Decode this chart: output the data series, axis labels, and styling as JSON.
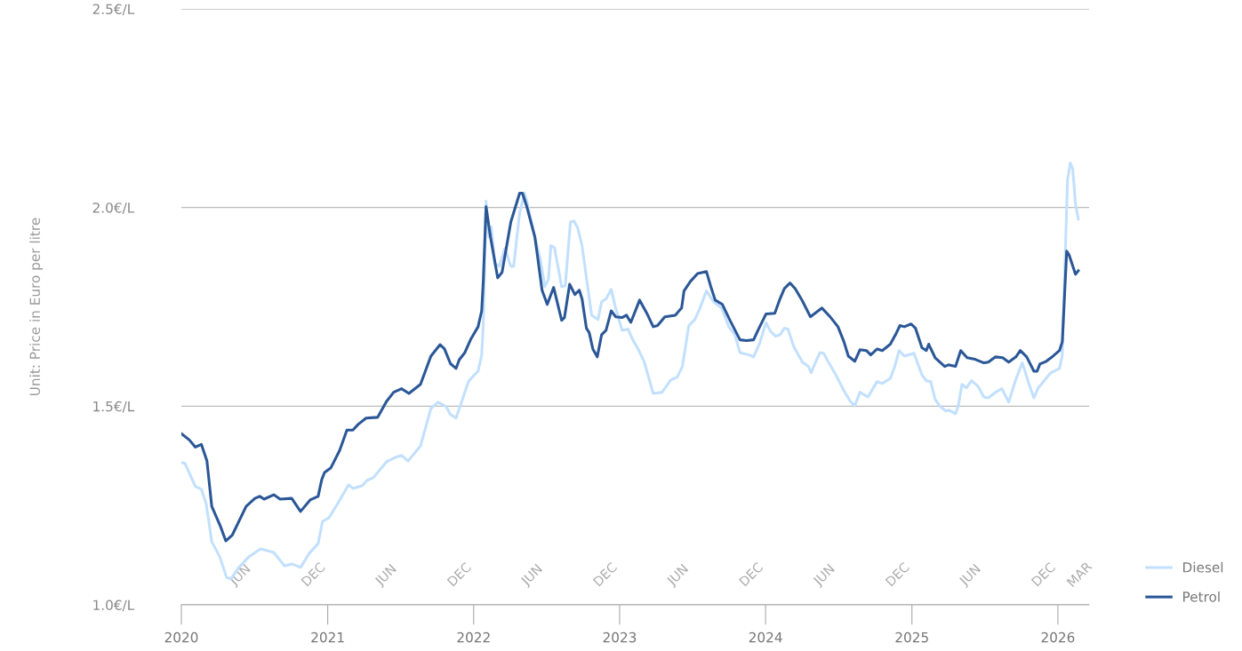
{
  "chart_data": {
    "type": "line",
    "ylabel": "Unit: Price in Euro per litre",
    "xlim": [
      "2020-01-01",
      "2026-03-20"
    ],
    "x2lim": [
      "2020-01-01",
      "2026-03-20"
    ],
    "ylim": [
      1.0,
      2.5
    ],
    "xticks": [
      "2020",
      "2021",
      "2022",
      "2023",
      "2024",
      "2025",
      "2026"
    ],
    "x2ticks": [
      {
        "value": "2020-06-15",
        "label": "JUN"
      },
      {
        "value": "2020-12-15",
        "label": "DEC"
      },
      {
        "value": "2021-06-15",
        "label": "JUN"
      },
      {
        "value": "2021-12-15",
        "label": "DEC"
      },
      {
        "value": "2022-06-15",
        "label": "JUN"
      },
      {
        "value": "2022-12-15",
        "label": "DEC"
      },
      {
        "value": "2023-06-15",
        "label": "JUN"
      },
      {
        "value": "2023-12-15",
        "label": "DEC"
      },
      {
        "value": "2024-06-15",
        "label": "JUN"
      },
      {
        "value": "2024-12-15",
        "label": "DEC"
      },
      {
        "value": "2025-06-15",
        "label": "JUN"
      },
      {
        "value": "2025-12-15",
        "label": "DEC"
      },
      {
        "value": "2026-03-15",
        "label": "MAR"
      }
    ],
    "yticks": [
      {
        "value": 1.0,
        "label": "1.0€/L"
      },
      {
        "value": 1.5,
        "label": "1.5€/L"
      },
      {
        "value": 2.0,
        "label": "2.0€/L"
      },
      {
        "value": 2.5,
        "label": "2.5€/L"
      }
    ],
    "grid": "y",
    "legend": "bottom right",
    "marker": "none",
    "line_style": "solid",
    "series": [
      {
        "name": "Diesel",
        "color": "#c2e0fd",
        "x": [
          "2020-01-01",
          "2020-01-10",
          "2020-02-05",
          "2020-02-20",
          "2020-03-03",
          "2020-03-17",
          "2020-04-06",
          "2020-04-23",
          "2020-05-04",
          "2020-05-22",
          "2020-06-18",
          "2020-07-17",
          "2020-08-19",
          "2020-09-15",
          "2020-10-03",
          "2020-10-25",
          "2020-11-16",
          "2020-12-08",
          "2020-12-19",
          "2021-01-04",
          "2021-01-26",
          "2021-02-22",
          "2021-03-05",
          "2021-03-29",
          "2021-04-09",
          "2021-04-25",
          "2021-05-28",
          "2021-06-19",
          "2021-07-05",
          "2021-07-21",
          "2021-08-21",
          "2021-09-16",
          "2021-10-04",
          "2021-10-24",
          "2021-11-04",
          "2021-11-18",
          "2021-12-19",
          "2022-01-01",
          "2022-01-12",
          "2022-01-21",
          "2022-01-25",
          "2022-02-01",
          "2022-02-08",
          "2022-02-14",
          "2022-02-23",
          "2022-03-06",
          "2022-03-20",
          "2022-04-04",
          "2022-04-11",
          "2022-04-26",
          "2022-05-08",
          "2022-05-14",
          "2022-06-03",
          "2022-06-17",
          "2022-06-28",
          "2022-07-07",
          "2022-07-13",
          "2022-07-22",
          "2022-08-09",
          "2022-08-18",
          "2022-08-31",
          "2022-09-09",
          "2022-09-18",
          "2022-09-29",
          "2022-10-10",
          "2022-10-23",
          "2022-11-08",
          "2022-11-17",
          "2022-11-28",
          "2022-12-11",
          "2022-12-22",
          "2023-01-07",
          "2023-01-22",
          "2023-02-03",
          "2023-02-16",
          "2023-03-03",
          "2023-03-26",
          "2023-04-17",
          "2023-05-09",
          "2023-05-25",
          "2023-06-07",
          "2023-06-23",
          "2023-07-08",
          "2023-07-21",
          "2023-08-06",
          "2023-08-24",
          "2023-09-13",
          "2023-10-01",
          "2023-10-16",
          "2023-10-29",
          "2023-11-21",
          "2023-12-02",
          "2023-12-17",
          "2024-01-02",
          "2024-01-13",
          "2024-01-26",
          "2024-02-06",
          "2024-02-17",
          "2024-02-26",
          "2024-03-11",
          "2024-04-02",
          "2024-04-17",
          "2024-04-24",
          "2024-05-03",
          "2024-05-16",
          "2024-05-25",
          "2024-06-05",
          "2024-06-23",
          "2024-07-15",
          "2024-07-31",
          "2024-08-11",
          "2024-08-24",
          "2024-09-13",
          "2024-10-06",
          "2024-10-19",
          "2024-11-08",
          "2024-11-19",
          "2024-11-30",
          "2024-12-13",
          "2025-01-06",
          "2025-01-26",
          "2025-02-06",
          "2025-02-17",
          "2025-02-28",
          "2025-03-13",
          "2025-03-27",
          "2025-04-04",
          "2025-04-20",
          "2025-04-27",
          "2025-05-06",
          "2025-05-17",
          "2025-05-30",
          "2025-06-15",
          "2025-06-30",
          "2025-07-11",
          "2025-07-29",
          "2025-08-14",
          "2025-08-31",
          "2025-09-18",
          "2025-10-04",
          "2025-10-21",
          "2025-11-02",
          "2025-11-13",
          "2025-12-14",
          "2026-01-05",
          "2026-01-12",
          "2026-01-25",
          "2026-02-01",
          "2026-02-07",
          "2026-02-14",
          "2026-02-21"
        ],
        "values": [
          1.358,
          1.356,
          1.298,
          1.291,
          1.255,
          1.159,
          1.121,
          1.069,
          1.065,
          1.092,
          1.121,
          1.141,
          1.132,
          1.098,
          1.103,
          1.094,
          1.13,
          1.154,
          1.21,
          1.219,
          1.255,
          1.302,
          1.293,
          1.3,
          1.313,
          1.32,
          1.36,
          1.371,
          1.376,
          1.362,
          1.4,
          1.494,
          1.51,
          1.499,
          1.479,
          1.47,
          1.562,
          1.577,
          1.588,
          1.629,
          1.703,
          2.016,
          1.926,
          1.951,
          1.859,
          1.852,
          1.897,
          1.852,
          1.852,
          1.987,
          2.036,
          2.016,
          1.926,
          1.868,
          1.801,
          1.819,
          1.904,
          1.899,
          1.801,
          1.803,
          1.964,
          1.966,
          1.949,
          1.904,
          1.823,
          1.729,
          1.718,
          1.763,
          1.77,
          1.794,
          1.747,
          1.691,
          1.694,
          1.667,
          1.644,
          1.613,
          1.532,
          1.535,
          1.566,
          1.573,
          1.6,
          1.703,
          1.718,
          1.747,
          1.79,
          1.763,
          1.747,
          1.7,
          1.68,
          1.635,
          1.629,
          1.624,
          1.658,
          1.71,
          1.689,
          1.676,
          1.68,
          1.696,
          1.694,
          1.651,
          1.611,
          1.6,
          1.584,
          1.606,
          1.635,
          1.633,
          1.613,
          1.582,
          1.539,
          1.512,
          1.501,
          1.535,
          1.523,
          1.562,
          1.557,
          1.57,
          1.6,
          1.64,
          1.626,
          1.633,
          1.579,
          1.564,
          1.562,
          1.517,
          1.499,
          1.488,
          1.49,
          1.481,
          1.501,
          1.555,
          1.546,
          1.564,
          1.55,
          1.523,
          1.521,
          1.535,
          1.544,
          1.51,
          1.568,
          1.609,
          1.555,
          1.521,
          1.546,
          1.584,
          1.595,
          1.629,
          2.069,
          2.112,
          2.098,
          2.009,
          1.971
        ]
      },
      {
        "name": "Petrol",
        "color": "#2b5797",
        "x": [
          "2020-01-01",
          "2020-01-21",
          "2020-02-05",
          "2020-02-20",
          "2020-03-05",
          "2020-03-17",
          "2020-04-08",
          "2020-04-21",
          "2020-05-07",
          "2020-06-11",
          "2020-07-03",
          "2020-07-15",
          "2020-07-26",
          "2020-08-19",
          "2020-09-04",
          "2020-10-03",
          "2020-10-25",
          "2020-11-18",
          "2020-12-08",
          "2020-12-17",
          "2020-12-24",
          "2021-01-09",
          "2021-01-31",
          "2021-02-18",
          "2021-03-05",
          "2021-03-18",
          "2021-04-07",
          "2021-05-06",
          "2021-05-28",
          "2021-06-15",
          "2021-07-05",
          "2021-07-23",
          "2021-08-21",
          "2021-09-16",
          "2021-10-09",
          "2021-10-20",
          "2021-11-04",
          "2021-11-18",
          "2021-11-26",
          "2021-12-10",
          "2021-12-25",
          "2022-01-12",
          "2022-01-21",
          "2022-01-25",
          "2022-02-01",
          "2022-02-12",
          "2022-03-02",
          "2022-03-13",
          "2022-04-04",
          "2022-04-26",
          "2022-05-03",
          "2022-05-14",
          "2022-06-03",
          "2022-06-10",
          "2022-06-21",
          "2022-07-04",
          "2022-07-20",
          "2022-08-09",
          "2022-08-16",
          "2022-08-29",
          "2022-09-11",
          "2022-09-22",
          "2022-09-29",
          "2022-10-10",
          "2022-10-17",
          "2022-10-26",
          "2022-11-06",
          "2022-11-17",
          "2022-11-28",
          "2022-12-11",
          "2022-12-22",
          "2023-01-07",
          "2023-01-18",
          "2023-01-29",
          "2023-02-20",
          "2023-03-10",
          "2023-03-26",
          "2023-04-06",
          "2023-04-24",
          "2023-05-20",
          "2023-06-05",
          "2023-06-11",
          "2023-06-27",
          "2023-07-15",
          "2023-08-06",
          "2023-08-17",
          "2023-08-28",
          "2023-09-15",
          "2023-10-05",
          "2023-10-29",
          "2023-11-14",
          "2023-12-02",
          "2023-12-13",
          "2024-01-02",
          "2024-01-24",
          "2024-02-06",
          "2024-02-17",
          "2024-03-02",
          "2024-03-15",
          "2024-04-02",
          "2024-04-22",
          "2024-05-21",
          "2024-06-12",
          "2024-06-30",
          "2024-07-15",
          "2024-07-26",
          "2024-08-11",
          "2024-08-24",
          "2024-09-09",
          "2024-09-20",
          "2024-10-06",
          "2024-10-19",
          "2024-11-08",
          "2024-11-21",
          "2024-12-02",
          "2024-12-13",
          "2024-12-30",
          "2025-01-10",
          "2025-01-26",
          "2025-02-06",
          "2025-02-12",
          "2025-02-28",
          "2025-03-24",
          "2025-04-02",
          "2025-04-20",
          "2025-05-03",
          "2025-05-19",
          "2025-06-08",
          "2025-06-30",
          "2025-07-11",
          "2025-07-29",
          "2025-08-16",
          "2025-08-31",
          "2025-09-18",
          "2025-09-29",
          "2025-10-15",
          "2025-11-02",
          "2025-11-10",
          "2025-11-17",
          "2025-12-03",
          "2025-12-20",
          "2026-01-05",
          "2026-01-12",
          "2026-01-23",
          "2026-01-29",
          "2026-02-14",
          "2026-02-21"
        ],
        "values": [
          1.431,
          1.415,
          1.397,
          1.404,
          1.362,
          1.248,
          1.197,
          1.161,
          1.175,
          1.248,
          1.268,
          1.273,
          1.266,
          1.277,
          1.266,
          1.268,
          1.235,
          1.264,
          1.273,
          1.315,
          1.333,
          1.345,
          1.389,
          1.44,
          1.44,
          1.454,
          1.47,
          1.472,
          1.512,
          1.535,
          1.544,
          1.532,
          1.555,
          1.626,
          1.655,
          1.644,
          1.607,
          1.595,
          1.617,
          1.635,
          1.669,
          1.7,
          1.74,
          1.814,
          2.002,
          1.926,
          1.823,
          1.837,
          1.964,
          2.036,
          2.036,
          2.002,
          1.926,
          1.875,
          1.792,
          1.756,
          1.799,
          1.716,
          1.723,
          1.807,
          1.781,
          1.792,
          1.77,
          1.696,
          1.685,
          1.644,
          1.624,
          1.68,
          1.691,
          1.74,
          1.725,
          1.723,
          1.729,
          1.711,
          1.767,
          1.734,
          1.7,
          1.703,
          1.725,
          1.729,
          1.747,
          1.79,
          1.814,
          1.834,
          1.839,
          1.801,
          1.767,
          1.756,
          1.714,
          1.667,
          1.665,
          1.667,
          1.691,
          1.732,
          1.734,
          1.77,
          1.796,
          1.81,
          1.796,
          1.765,
          1.725,
          1.747,
          1.723,
          1.7,
          1.662,
          1.626,
          1.613,
          1.642,
          1.64,
          1.629,
          1.644,
          1.64,
          1.656,
          1.68,
          1.703,
          1.7,
          1.707,
          1.696,
          1.647,
          1.64,
          1.656,
          1.622,
          1.6,
          1.604,
          1.6,
          1.64,
          1.622,
          1.618,
          1.609,
          1.611,
          1.624,
          1.622,
          1.611,
          1.624,
          1.64,
          1.624,
          1.588,
          1.588,
          1.606,
          1.613,
          1.626,
          1.64,
          1.662,
          1.89,
          1.881,
          1.832,
          1.841
        ]
      }
    ]
  }
}
